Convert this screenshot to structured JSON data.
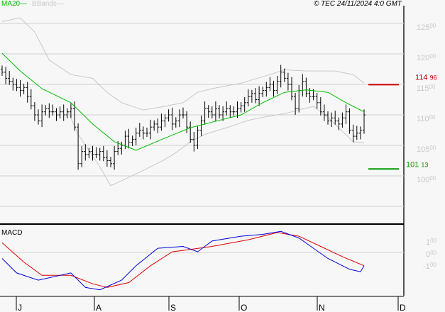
{
  "legend": {
    "ma20": "MA20",
    "bbands": "BBands"
  },
  "copyright": "© TEC 24/11/2024 4:0 GMT",
  "colors": {
    "ma": "#00bb00",
    "bands": "#c8c8c8",
    "macd": "#0000dd",
    "signal": "#dd0000",
    "resistance": "#cc0000",
    "support": "#009900"
  },
  "chart_data": [
    {
      "type": "ohlc",
      "title": "",
      "y_ticks": [
        {
          "int": "125",
          "dec": "00",
          "v": 125
        },
        {
          "int": "120",
          "dec": "00",
          "v": 120
        },
        {
          "int": "115",
          "dec": "00",
          "v": 115
        },
        {
          "int": "110",
          "dec": "00",
          "v": 110
        },
        {
          "int": "105",
          "dec": "00",
          "v": 105
        },
        {
          "int": "100",
          "dec": "00",
          "v": 100
        }
      ],
      "ylim": [
        95,
        128.8
      ],
      "x_ticks": [
        {
          "label": "J",
          "i": 4
        },
        {
          "label": "A",
          "i": 25.5
        },
        {
          "label": "S",
          "i": 46
        },
        {
          "label": "O",
          "i": 65.5
        },
        {
          "label": "N",
          "i": 87
        },
        {
          "label": "D",
          "i": 109.5
        }
      ],
      "closes": [
        117,
        116,
        115.5,
        115,
        114.5,
        114,
        114.5,
        113,
        111.5,
        110,
        109,
        110.5,
        111,
        110.5,
        110.5,
        110,
        110.5,
        110,
        110.5,
        111,
        108,
        102,
        104,
        103.5,
        104,
        103.5,
        103.5,
        104,
        103,
        102.5,
        102,
        104,
        104.5,
        105,
        106.5,
        105.5,
        106,
        107,
        107.5,
        107,
        107,
        108,
        108.5,
        108,
        109,
        109.5,
        110,
        108.5,
        109,
        110,
        110,
        108,
        106,
        105,
        107.5,
        109,
        111,
        110.5,
        110,
        111,
        110,
        110.5,
        111,
        110.5,
        110.5,
        111,
        111.5,
        112,
        113,
        113.5,
        112.5,
        113.5,
        114,
        114.5,
        115,
        114,
        115.5,
        117,
        116,
        115,
        113,
        111,
        114,
        115.5,
        113.5,
        113,
        113,
        112,
        110.5,
        110,
        109,
        109.5,
        109,
        108.5,
        109.5,
        110.5,
        107.5,
        106.5,
        107,
        107.5,
        110
      ],
      "ma20": [
        [
          0,
          120.1
        ],
        [
          5,
          117.2
        ],
        [
          11,
          114.3
        ],
        [
          19,
          112
        ],
        [
          25,
          108.5
        ],
        [
          31,
          105.6
        ],
        [
          37,
          104.2
        ],
        [
          45,
          106.2
        ],
        [
          52,
          107.9
        ],
        [
          58,
          108.8
        ],
        [
          66,
          110
        ],
        [
          72,
          112
        ],
        [
          78,
          113.7
        ],
        [
          84,
          114.1
        ],
        [
          90,
          113.7
        ],
        [
          95,
          112
        ],
        [
          100,
          110.5
        ]
      ],
      "bband_upper": [
        [
          0,
          125.3
        ],
        [
          5,
          125.9
        ],
        [
          9,
          123.6
        ],
        [
          13,
          119
        ],
        [
          19,
          116.6
        ],
        [
          25,
          116
        ],
        [
          29,
          113.7
        ],
        [
          33,
          112
        ],
        [
          39,
          110.8
        ],
        [
          45,
          111.4
        ],
        [
          50,
          112
        ],
        [
          54,
          113.7
        ],
        [
          58,
          114.3
        ],
        [
          66,
          115.2
        ],
        [
          74,
          116.6
        ],
        [
          78,
          117.4
        ],
        [
          84,
          117.2
        ],
        [
          92,
          117.2
        ],
        [
          97,
          116.6
        ],
        [
          100,
          115.2
        ]
      ],
      "bband_lower": [
        [
          18,
          110.8
        ],
        [
          21,
          106.8
        ],
        [
          27,
          101.5
        ],
        [
          30,
          98.4
        ],
        [
          33,
          99.2
        ],
        [
          39,
          100.9
        ],
        [
          45,
          102.7
        ],
        [
          48,
          103.8
        ],
        [
          52,
          105.6
        ],
        [
          56,
          106.8
        ],
        [
          62,
          107.9
        ],
        [
          68,
          109.1
        ],
        [
          72,
          109.6
        ],
        [
          78,
          110.2
        ],
        [
          82,
          110.8
        ],
        [
          86,
          111.4
        ],
        [
          90,
          109.6
        ],
        [
          94,
          107.3
        ],
        [
          97,
          105.6
        ],
        [
          100,
          105.4
        ]
      ],
      "levels": [
        {
          "int": "114",
          "dec": "96",
          "value": 114.96,
          "kind": "resistance"
        },
        {
          "int": "101",
          "dec": "13",
          "value": 101.13,
          "kind": "support"
        }
      ]
    },
    {
      "type": "line",
      "title": "MACD",
      "y_ticks": [
        {
          "int": "1",
          "dec": "00",
          "v": 1
        },
        {
          "int": "0",
          "dec": "00",
          "v": 0
        },
        {
          "int": "-1",
          "dec": "00",
          "v": -1
        }
      ],
      "macd": [
        [
          0,
          -0.5
        ],
        [
          4,
          -1.7
        ],
        [
          10,
          -2.3
        ],
        [
          19,
          -1.7
        ],
        [
          23,
          -2.9
        ],
        [
          27,
          -3.1
        ],
        [
          33,
          -2.3
        ],
        [
          37,
          -1.1
        ],
        [
          43,
          0.35
        ],
        [
          50,
          0.5
        ],
        [
          54,
          0.05
        ],
        [
          58,
          0.95
        ],
        [
          66,
          1.35
        ],
        [
          72,
          1.5
        ],
        [
          77,
          1.75
        ],
        [
          82,
          1.2
        ],
        [
          86,
          0.35
        ],
        [
          90,
          -0.5
        ],
        [
          96,
          -1.4
        ],
        [
          99,
          -1.6
        ],
        [
          100,
          -1.1
        ]
      ],
      "signal": [
        [
          0,
          0.8
        ],
        [
          6,
          -0.8
        ],
        [
          11,
          -1.9
        ],
        [
          19,
          -1.9
        ],
        [
          25,
          -2.6
        ],
        [
          29,
          -2.9
        ],
        [
          35,
          -2.5
        ],
        [
          41,
          -1.1
        ],
        [
          47,
          0.05
        ],
        [
          52,
          0.25
        ],
        [
          58,
          0.5
        ],
        [
          68,
          1.05
        ],
        [
          76,
          1.65
        ],
        [
          82,
          1.35
        ],
        [
          88,
          0.5
        ],
        [
          94,
          -0.35
        ],
        [
          100,
          -1.1
        ]
      ]
    }
  ]
}
